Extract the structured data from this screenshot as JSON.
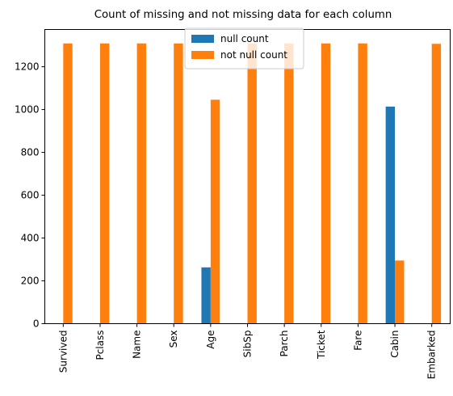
{
  "chart_data": {
    "type": "bar",
    "title": "Count of missing and not missing data for each column",
    "xlabel": "",
    "ylabel": "",
    "categories": [
      "Survived",
      "Pclass",
      "Name",
      "Sex",
      "Age",
      "SibSp",
      "Parch",
      "Ticket",
      "Fare",
      "Cabin",
      "Embarked"
    ],
    "series": [
      {
        "name": "null count",
        "color": "#1f77b4",
        "values": [
          0,
          0,
          0,
          0,
          263,
          0,
          0,
          0,
          0,
          1014,
          2
        ]
      },
      {
        "name": "not null count",
        "color": "#ff7f0e",
        "values": [
          1309,
          1309,
          1309,
          1309,
          1046,
          1309,
          1309,
          1309,
          1309,
          295,
          1307
        ]
      }
    ],
    "ylim": [
      0,
      1374
    ],
    "yticks": [
      0,
      200,
      400,
      600,
      800,
      1000,
      1200
    ],
    "grid": false,
    "legend_position": "top-center"
  }
}
